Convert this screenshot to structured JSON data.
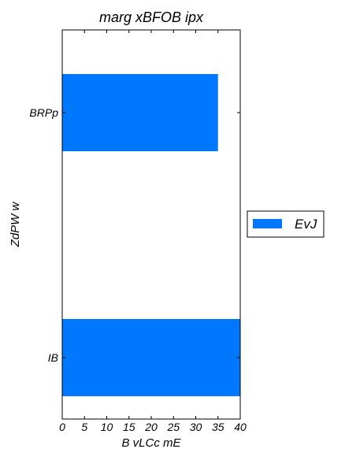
{
  "chart_data": {
    "type": "bar",
    "orientation": "horizontal",
    "title": "marg xBFOB ipx",
    "xlabel": "B vLCc mE",
    "ylabel": "ZdPW w",
    "categories": [
      "BRPp",
      "IB"
    ],
    "series": [
      {
        "name": "EvJ",
        "values": [
          35,
          40
        ],
        "color": "#0077ff"
      }
    ],
    "xlim": [
      0,
      40
    ],
    "xticks": [
      0,
      5,
      10,
      15,
      20,
      25,
      30,
      35,
      40
    ],
    "grid": false,
    "legend_position": "right"
  }
}
